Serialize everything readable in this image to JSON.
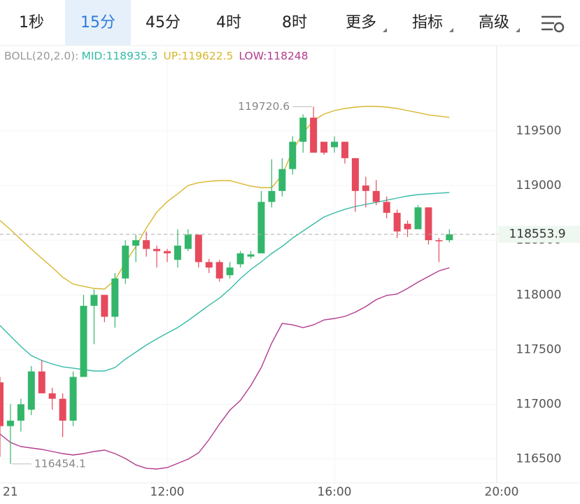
{
  "tabs": {
    "items": [
      "1秒",
      "15分",
      "45分",
      "4时",
      "8时",
      "更多",
      "指标",
      "高级"
    ],
    "selected": 1
  },
  "chart_data": {
    "type": "candlestick",
    "indicator": "BOLL(20,2.0):",
    "x": [
      8,
      8.25,
      8.5,
      8.75,
      9,
      9.25,
      9.5,
      9.75,
      10,
      10.25,
      10.5,
      10.75,
      11,
      11.25,
      11.5,
      11.75,
      12,
      12.25,
      12.5,
      12.75,
      13,
      13.25,
      13.5,
      13.75,
      14,
      14.25,
      14.5,
      14.75,
      15,
      15.25,
      15.5,
      15.75,
      16,
      16.25,
      16.5,
      16.75,
      17,
      17.25,
      17.5,
      17.75,
      18,
      18.25,
      18.5,
      18.75
    ],
    "open": [
      117200,
      116800,
      116850,
      116950,
      117300,
      117100,
      117050,
      116850,
      117250,
      117900,
      118000,
      117800,
      118150,
      118450,
      118500,
      118420,
      118400,
      118320,
      118420,
      118550,
      118300,
      118300,
      118180,
      118280,
      118350,
      118380,
      118850,
      118950,
      119150,
      119400,
      119620,
      119400,
      119350,
      119400,
      119250,
      119000,
      118950,
      118850,
      118750,
      118650,
      118600,
      118800,
      118500,
      118500
    ],
    "high": [
      117250,
      117000,
      117050,
      117350,
      117400,
      117150,
      117100,
      117300,
      118000,
      118050,
      118000,
      118200,
      118500,
      118550,
      118580,
      118450,
      118420,
      118600,
      118600,
      118550,
      118330,
      118320,
      118300,
      118400,
      118400,
      118950,
      119240,
      119250,
      119450,
      119650,
      119720.6,
      119400,
      119450,
      119400,
      119250,
      119080,
      119050,
      118900,
      118780,
      118680,
      118820,
      118800,
      118520,
      118600
    ],
    "low": [
      116520,
      116454.1,
      116750,
      116900,
      117100,
      116950,
      116700,
      116800,
      117250,
      117550,
      117750,
      117700,
      118100,
      118300,
      118350,
      118250,
      118300,
      118250,
      118400,
      118250,
      118200,
      118120,
      118150,
      118250,
      118330,
      118380,
      118800,
      118900,
      119100,
      119300,
      119300,
      119280,
      119300,
      119200,
      118760,
      118800,
      118820,
      118700,
      118520,
      118530,
      118600,
      118460,
      118300,
      118480
    ],
    "close": [
      116800,
      116850,
      117000,
      117300,
      117100,
      117050,
      116850,
      117250,
      117900,
      118000,
      117800,
      118150,
      118450,
      118500,
      118420,
      118400,
      118380,
      118450,
      118550,
      118300,
      118250,
      118150,
      118250,
      118380,
      118370,
      118850,
      118950,
      119150,
      119400,
      119620,
      119300,
      119300,
      119400,
      119250,
      118950,
      118950,
      118850,
      118750,
      118580,
      118600,
      118800,
      118500,
      118490,
      118553.9
    ],
    "up_color": "#33b66a",
    "down_color": "#e64a5c",
    "series": [
      {
        "name": "MID:",
        "color": "#35bba8",
        "values": [
          117720,
          117624,
          117528,
          117445,
          117400,
          117368,
          117342,
          117330,
          117317,
          117304,
          117304,
          117336,
          117413,
          117477,
          117541,
          117598,
          117650,
          117701,
          117765,
          117835,
          117906,
          117970,
          118053,
          118149,
          118232,
          118302,
          118379,
          118443,
          118520,
          118584,
          118648,
          118712,
          118750,
          118782,
          118808,
          118827,
          118846,
          118866,
          118885,
          118904,
          118917,
          118923,
          118930,
          118935.3
        ]
      },
      {
        "name": "UP:",
        "color": "#d8b62c",
        "values": [
          118680,
          118597,
          118507,
          118418,
          118334,
          118251,
          118162,
          118098,
          118078,
          118059,
          118053,
          118136,
          118296,
          118443,
          118610,
          118757,
          118853,
          118923,
          119000,
          119026,
          119038,
          119045,
          119045,
          119019,
          118994,
          118981,
          118981,
          119096,
          119320,
          119480,
          119595,
          119653,
          119685,
          119704,
          119717,
          119723,
          119723,
          119717,
          119704,
          119685,
          119666,
          119646,
          119634,
          119622.5
        ]
      },
      {
        "name": "LOW:",
        "color": "#b23c8e",
        "values": [
          116728,
          116651,
          116613,
          116600,
          116587,
          116568,
          116549,
          116536,
          116549,
          116568,
          116581,
          116549,
          116504,
          116446,
          116414,
          116408,
          116421,
          116459,
          116498,
          116555,
          116677,
          116818,
          116946,
          117035,
          117170,
          117336,
          117560,
          117739,
          117726,
          117701,
          117726,
          117771,
          117784,
          117803,
          117842,
          117893,
          117957,
          117995,
          118008,
          118059,
          118117,
          118168,
          118219,
          118248
        ]
      }
    ],
    "xlim": [
      8,
      20
    ],
    "xticks": [
      {
        "value": 8,
        "label": "21"
      },
      {
        "value": 12,
        "label": "12:00"
      },
      {
        "value": 16,
        "label": "16:00"
      },
      {
        "value": 20,
        "label": "20:00"
      }
    ],
    "ylim": [
      116280,
      120280
    ],
    "yticks": [
      116500,
      117000,
      117500,
      118000,
      118500,
      119000,
      119500
    ],
    "grid": true
  }
}
